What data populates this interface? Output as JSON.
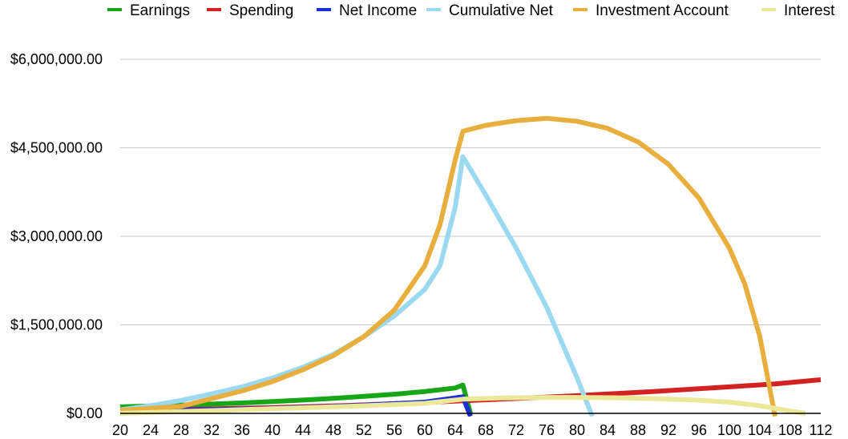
{
  "chart_data": {
    "type": "line",
    "title": "",
    "xlabel": "",
    "ylabel": "",
    "x": [
      20,
      22,
      24,
      26,
      28,
      30,
      32,
      34,
      36,
      38,
      40,
      42,
      44,
      46,
      48,
      50,
      52,
      54,
      56,
      58,
      60,
      62,
      64,
      65,
      66,
      68,
      70,
      72,
      74,
      76,
      78,
      80,
      82,
      84,
      86,
      88,
      90,
      92,
      94,
      96,
      98,
      100,
      102,
      104,
      106,
      108,
      110,
      112
    ],
    "x_ticks": [
      "20",
      "24",
      "28",
      "32",
      "36",
      "40",
      "44",
      "48",
      "52",
      "56",
      "60",
      "64",
      "68",
      "72",
      "76",
      "80",
      "84",
      "88",
      "92",
      "96",
      "100",
      "104",
      "108",
      "112"
    ],
    "y_ticks": [
      "$0.00",
      "$1,500,000.00",
      "$3,000,000.00",
      "$4,500,000.00",
      "$6,000,000.00"
    ],
    "ylim": [
      0,
      6000000
    ],
    "xlim": [
      20,
      112
    ],
    "grid": true,
    "legend_position": "top",
    "series": [
      {
        "name": "Earnings",
        "color": "#17a617",
        "points": [
          [
            20,
            110000
          ],
          [
            24,
            125000
          ],
          [
            28,
            140000
          ],
          [
            32,
            158000
          ],
          [
            36,
            177000
          ],
          [
            40,
            200000
          ],
          [
            44,
            225000
          ],
          [
            48,
            255000
          ],
          [
            52,
            288000
          ],
          [
            56,
            325000
          ],
          [
            60,
            370000
          ],
          [
            64,
            430000
          ],
          [
            65,
            480000
          ],
          [
            66,
            0
          ]
        ]
      },
      {
        "name": "Spending",
        "color": "#d32222",
        "points": [
          [
            20,
            50000
          ],
          [
            30,
            70000
          ],
          [
            40,
            98000
          ],
          [
            50,
            135000
          ],
          [
            60,
            185000
          ],
          [
            70,
            240000
          ],
          [
            80,
            300000
          ],
          [
            90,
            370000
          ],
          [
            100,
            450000
          ],
          [
            106,
            500000
          ],
          [
            112,
            570000
          ]
        ]
      },
      {
        "name": "Net Income",
        "color": "#1a2fd6",
        "points": [
          [
            20,
            40000
          ],
          [
            30,
            58000
          ],
          [
            40,
            85000
          ],
          [
            50,
            125000
          ],
          [
            60,
            190000
          ],
          [
            65,
            280000
          ],
          [
            66,
            -50000
          ]
        ]
      },
      {
        "name": "Cumulative Net",
        "color": "#9ad9f0",
        "points": [
          [
            20,
            60000
          ],
          [
            24,
            130000
          ],
          [
            28,
            220000
          ],
          [
            32,
            330000
          ],
          [
            36,
            450000
          ],
          [
            40,
            600000
          ],
          [
            44,
            780000
          ],
          [
            48,
            1000000
          ],
          [
            52,
            1300000
          ],
          [
            56,
            1650000
          ],
          [
            60,
            2100000
          ],
          [
            62,
            2500000
          ],
          [
            64,
            3500000
          ],
          [
            65,
            4350000
          ],
          [
            68,
            3700000
          ],
          [
            72,
            2800000
          ],
          [
            76,
            1800000
          ],
          [
            80,
            600000
          ],
          [
            82,
            -50000
          ]
        ]
      },
      {
        "name": "Investment Account",
        "color": "#e8ae3e",
        "points": [
          [
            20,
            50000
          ],
          [
            28,
            120000
          ],
          [
            32,
            250000
          ],
          [
            36,
            380000
          ],
          [
            40,
            540000
          ],
          [
            44,
            740000
          ],
          [
            48,
            980000
          ],
          [
            52,
            1300000
          ],
          [
            56,
            1750000
          ],
          [
            60,
            2500000
          ],
          [
            62,
            3200000
          ],
          [
            64,
            4300000
          ],
          [
            65,
            4780000
          ],
          [
            68,
            4880000
          ],
          [
            72,
            4960000
          ],
          [
            76,
            5000000
          ],
          [
            80,
            4950000
          ],
          [
            84,
            4830000
          ],
          [
            88,
            4600000
          ],
          [
            92,
            4220000
          ],
          [
            96,
            3650000
          ],
          [
            100,
            2800000
          ],
          [
            102,
            2200000
          ],
          [
            104,
            1300000
          ],
          [
            106,
            -50000
          ]
        ]
      },
      {
        "name": "Interest",
        "color": "#ece89a",
        "points": [
          [
            20,
            0
          ],
          [
            30,
            40000
          ],
          [
            40,
            80000
          ],
          [
            50,
            120000
          ],
          [
            60,
            170000
          ],
          [
            65,
            240000
          ],
          [
            70,
            260000
          ],
          [
            76,
            270000
          ],
          [
            80,
            270000
          ],
          [
            85,
            265000
          ],
          [
            90,
            250000
          ],
          [
            95,
            230000
          ],
          [
            100,
            190000
          ],
          [
            104,
            130000
          ],
          [
            108,
            40000
          ],
          [
            110,
            0
          ]
        ]
      }
    ]
  }
}
